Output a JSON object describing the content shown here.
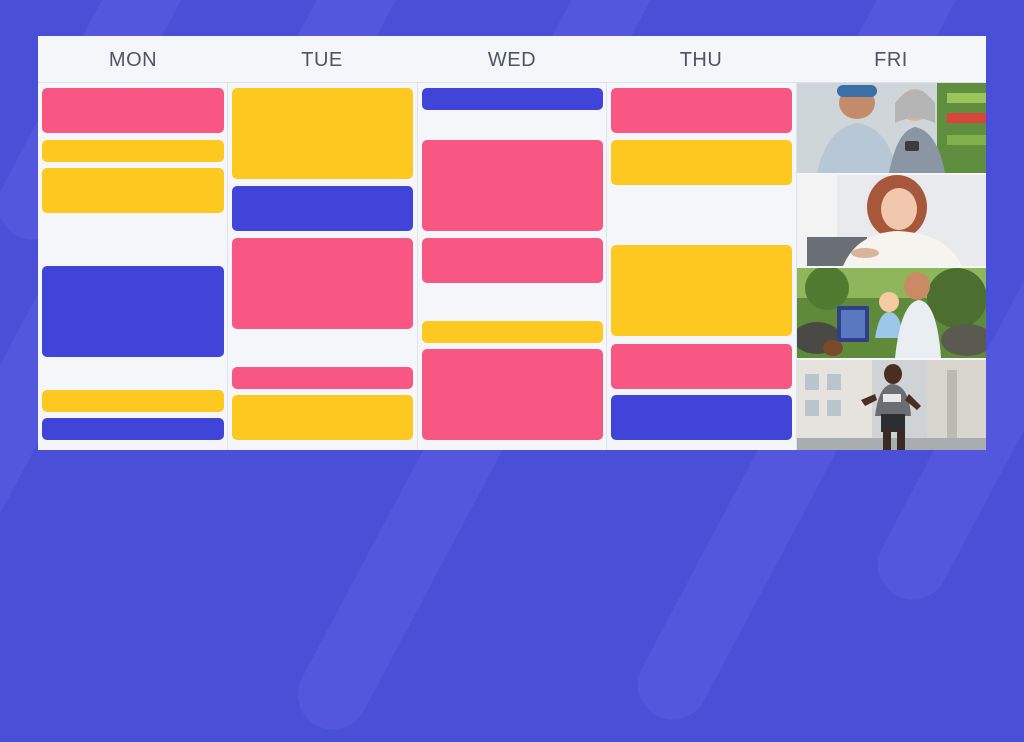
{
  "calendar": {
    "days": [
      "MON",
      "TUE",
      "WED",
      "THU",
      "FRI"
    ]
  },
  "colors": {
    "background": "#4a4fd8",
    "grid": "#f4f6fa",
    "pink": "#f85683",
    "yellow": "#fdc920",
    "blue": "#4144d8"
  },
  "friday_photos": [
    {
      "name": "couple-shopping-photo"
    },
    {
      "name": "woman-smiling-photo"
    },
    {
      "name": "father-child-reading-photo"
    },
    {
      "name": "man-running-photo"
    }
  ]
}
